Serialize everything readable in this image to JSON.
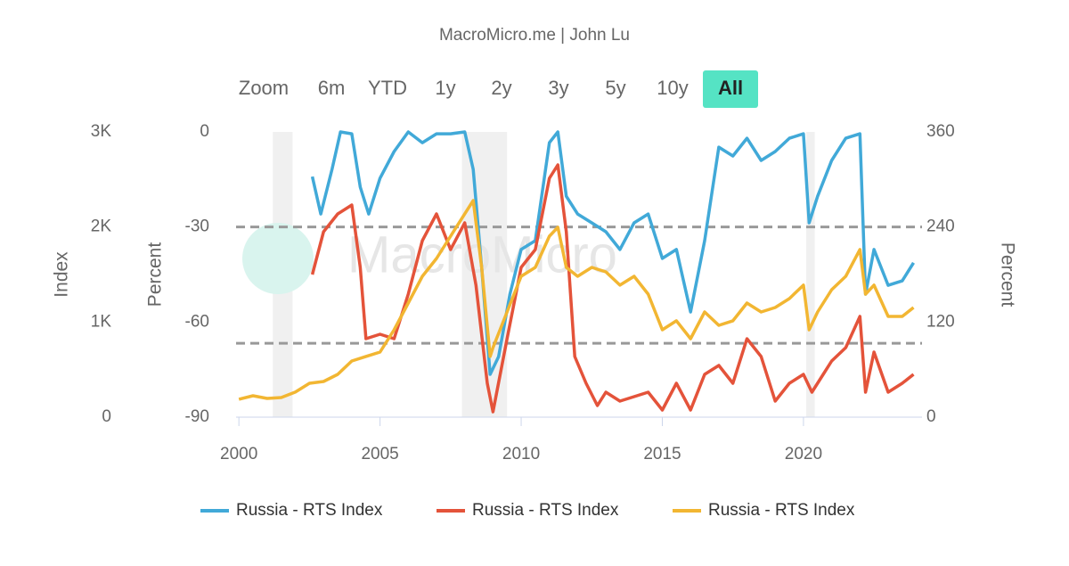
{
  "chart_data": {
    "type": "line",
    "title": "MacroMicro.me | John Lu",
    "watermark": "MacroMicro",
    "range_selector": {
      "label": "Zoom",
      "buttons": [
        "6m",
        "YTD",
        "1y",
        "2y",
        "3y",
        "5y",
        "10y",
        "All"
      ],
      "selected": 7,
      "selected_color": "#55e3c4"
    },
    "xlim": [
      1999.9,
      2024.2
    ],
    "xticks": [
      2000,
      2005,
      2010,
      2015,
      2020
    ],
    "axes": [
      {
        "title": "Index",
        "lim": [
          0,
          3000
        ],
        "ticks": [
          0,
          {
            "value": 1000,
            "label": "1K"
          },
          {
            "value": 2000,
            "label": "2K"
          },
          {
            "value": 3000,
            "label": "3K"
          }
        ],
        "side": "left"
      },
      {
        "title": "Percent",
        "lim": [
          -90,
          0
        ],
        "ticks": [
          -90,
          -60,
          -30,
          0
        ],
        "side": "left"
      },
      {
        "title": "Percent",
        "lim": [
          0,
          360
        ],
        "ticks": [
          0,
          120,
          240,
          360
        ],
        "side": "right"
      }
    ],
    "plot_lines": {
      "axis": 1,
      "values": [
        -30,
        -66.7
      ],
      "color": "#999999"
    },
    "bands": [
      [
        2001.2,
        2001.9
      ],
      [
        2007.9,
        2009.5
      ],
      [
        2020.1,
        2020.4
      ]
    ],
    "series": [
      {
        "name": "Russia - RTS Index",
        "color": "#41a9d8",
        "axis": 1,
        "x": [
          2002.6,
          2002.9,
          2003.3,
          2003.6,
          2004,
          2004.3,
          2004.6,
          2005,
          2005.5,
          2006,
          2006.5,
          2007,
          2007.5,
          2008,
          2008.3,
          2008.6,
          2008.9,
          2009.2,
          2009.6,
          2010,
          2010.5,
          2011,
          2011.3,
          2011.6,
          2012,
          2012.5,
          2013,
          2013.5,
          2014,
          2014.5,
          2015,
          2015.5,
          2016,
          2016.5,
          2017,
          2017.5,
          2018,
          2018.5,
          2019,
          2019.5,
          2020,
          2020.2,
          2020.5,
          2021,
          2021.5,
          2022,
          2022.2,
          2022.5,
          2023,
          2023.5,
          2023.9
        ],
        "values": [
          -14.1,
          -25.9,
          -11.8,
          0,
          -0.6,
          -17.4,
          -25.9,
          -14.6,
          -6.2,
          0,
          -3.4,
          -0.6,
          -0.6,
          0,
          -11.8,
          -42.8,
          -76.5,
          -70.9,
          -51.2,
          -37.1,
          -34.3,
          -3.4,
          0,
          -20.3,
          -25.9,
          -28.7,
          -31.5,
          -37.1,
          -28.7,
          -25.9,
          -39.9,
          -37.1,
          -56.8,
          -34.3,
          -4.8,
          -7.6,
          -2.0,
          -9.0,
          -6.2,
          -2.0,
          -0.6,
          -28.7,
          -20.3,
          -9.0,
          -2.0,
          -0.6,
          -51.2,
          -37.1,
          -48.4,
          -47.0,
          -41.3
        ]
      },
      {
        "name": "Russia - RTS Index",
        "color": "#e4533a",
        "axis": 2,
        "x": [
          2002.6,
          2003,
          2003.5,
          2004,
          2004.3,
          2004.5,
          2005,
          2005.5,
          2006,
          2006.5,
          2007,
          2007.5,
          2008,
          2008.4,
          2008.8,
          2009,
          2009.5,
          2010,
          2010.5,
          2011,
          2011.3,
          2011.6,
          2011.9,
          2012.3,
          2012.7,
          2013,
          2013.5,
          2014,
          2014.5,
          2015,
          2015.5,
          2016,
          2016.5,
          2017,
          2017.5,
          2018,
          2018.5,
          2019,
          2019.5,
          2020,
          2020.3,
          2020.7,
          2021,
          2021.5,
          2022,
          2022.2,
          2022.5,
          2023,
          2023.5,
          2023.9
        ],
        "values": [
          180,
          234,
          256.5,
          267.8,
          189,
          99,
          104.6,
          99,
          155.3,
          222.8,
          256.5,
          211.5,
          245.3,
          166.5,
          42.8,
          6.8,
          99,
          189,
          211.5,
          301.5,
          318.4,
          234,
          76.5,
          42.8,
          14.6,
          31.5,
          20.3,
          25.9,
          31.5,
          9,
          42.8,
          9,
          54,
          65.3,
          42.8,
          99,
          76.5,
          20.3,
          42.8,
          54,
          31.5,
          54,
          70.9,
          87.8,
          127.1,
          31.5,
          82.1,
          31.5,
          42.8,
          54
        ]
      },
      {
        "name": "Russia - RTS Index",
        "color": "#f2b632",
        "axis": 0,
        "x": [
          2000,
          2000.5,
          2001,
          2001.5,
          2002,
          2002.5,
          2003,
          2003.5,
          2004,
          2004.5,
          2005,
          2005.5,
          2006,
          2006.5,
          2007,
          2007.5,
          2008,
          2008.3,
          2008.6,
          2008.9,
          2009,
          2009.5,
          2010,
          2010.5,
          2011,
          2011.3,
          2011.6,
          2012,
          2012.5,
          2013,
          2013.5,
          2014,
          2014.5,
          2015,
          2015.5,
          2016,
          2016.5,
          2017,
          2017.5,
          2018,
          2018.5,
          2019,
          2019.5,
          2020,
          2020.2,
          2020.5,
          2021,
          2021.5,
          2022,
          2022.2,
          2022.5,
          2023,
          2023.5,
          2023.9
        ],
        "values": [
          188,
          225,
          197,
          206,
          263,
          356,
          375,
          450,
          591,
          638,
          684,
          919,
          1200,
          1481,
          1669,
          1903,
          2138,
          2278,
          1575,
          638,
          731,
          1106,
          1481,
          1575,
          1903,
          1997,
          1575,
          1481,
          1575,
          1528,
          1388,
          1481,
          1294,
          919,
          1013,
          825,
          1106,
          966,
          1013,
          1200,
          1106,
          1153,
          1247,
          1388,
          919,
          1106,
          1341,
          1481,
          1763,
          1294,
          1388,
          1059,
          1059,
          1153
        ]
      }
    ]
  }
}
